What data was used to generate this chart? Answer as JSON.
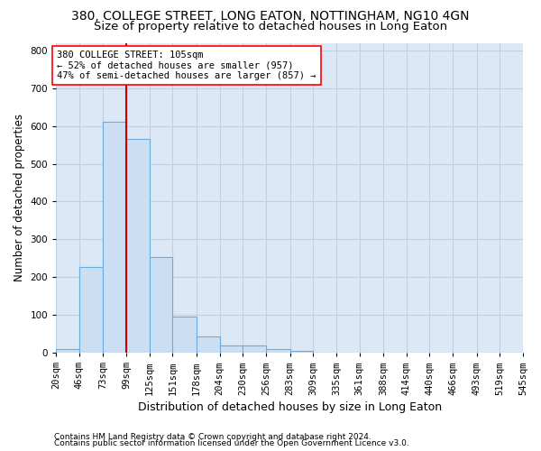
{
  "title1": "380, COLLEGE STREET, LONG EATON, NOTTINGHAM, NG10 4GN",
  "title2": "Size of property relative to detached houses in Long Eaton",
  "xlabel": "Distribution of detached houses by size in Long Eaton",
  "ylabel": "Number of detached properties",
  "footnote1": "Contains HM Land Registry data © Crown copyright and database right 2024.",
  "footnote2": "Contains public sector information licensed under the Open Government Licence v3.0.",
  "annotation_line1": "380 COLLEGE STREET: 105sqm",
  "annotation_line2": "← 52% of detached houses are smaller (957)",
  "annotation_line3": "47% of semi-detached houses are larger (857) →",
  "bar_color": "#ccdff2",
  "bar_edge_color": "#6aabe0",
  "vline_color": "#cc0000",
  "vline_x": 99,
  "bin_edges": [
    20,
    46,
    73,
    99,
    125,
    151,
    178,
    204,
    230,
    256,
    283,
    309,
    335,
    361,
    388,
    414,
    440,
    466,
    493,
    519,
    545
  ],
  "bar_heights": [
    10,
    228,
    612,
    565,
    253,
    95,
    42,
    20,
    20,
    10,
    5,
    0,
    0,
    0,
    0,
    0,
    0,
    0,
    0,
    0
  ],
  "ylim": [
    0,
    820
  ],
  "yticks": [
    0,
    100,
    200,
    300,
    400,
    500,
    600,
    700,
    800
  ],
  "xtick_labels": [
    "20sqm",
    "46sqm",
    "73sqm",
    "99sqm",
    "125sqm",
    "151sqm",
    "178sqm",
    "204sqm",
    "230sqm",
    "256sqm",
    "283sqm",
    "309sqm",
    "335sqm",
    "361sqm",
    "388sqm",
    "414sqm",
    "440sqm",
    "466sqm",
    "493sqm",
    "519sqm",
    "545sqm"
  ],
  "background_color": "#dce8f5",
  "grid_color": "#c0d0e0",
  "title_fontsize": 10,
  "subtitle_fontsize": 9.5,
  "ylabel_fontsize": 8.5,
  "xlabel_fontsize": 9,
  "tick_fontsize": 7.5,
  "annotation_fontsize": 7.5,
  "footnote_fontsize": 6.5
}
